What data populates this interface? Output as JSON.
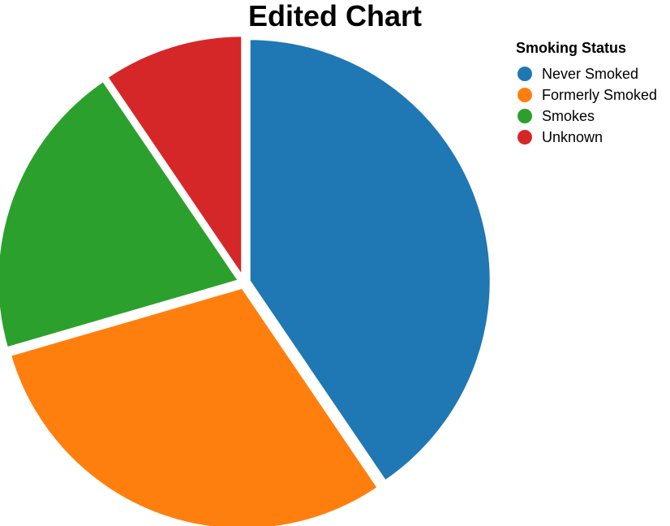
{
  "chart_data": {
    "type": "pie",
    "title": "Edited Chart",
    "legend_title": "Smoking Status",
    "legend_position": "top-right",
    "categories": [
      "Never Smoked",
      "Formerly Smoked",
      "Smokes",
      "Unknown"
    ],
    "values": [
      40.5,
      30.0,
      20.0,
      9.5
    ],
    "colors": [
      "#1f77b4",
      "#ff7f0e",
      "#2ca02c",
      "#d62728"
    ],
    "exploded": true
  }
}
